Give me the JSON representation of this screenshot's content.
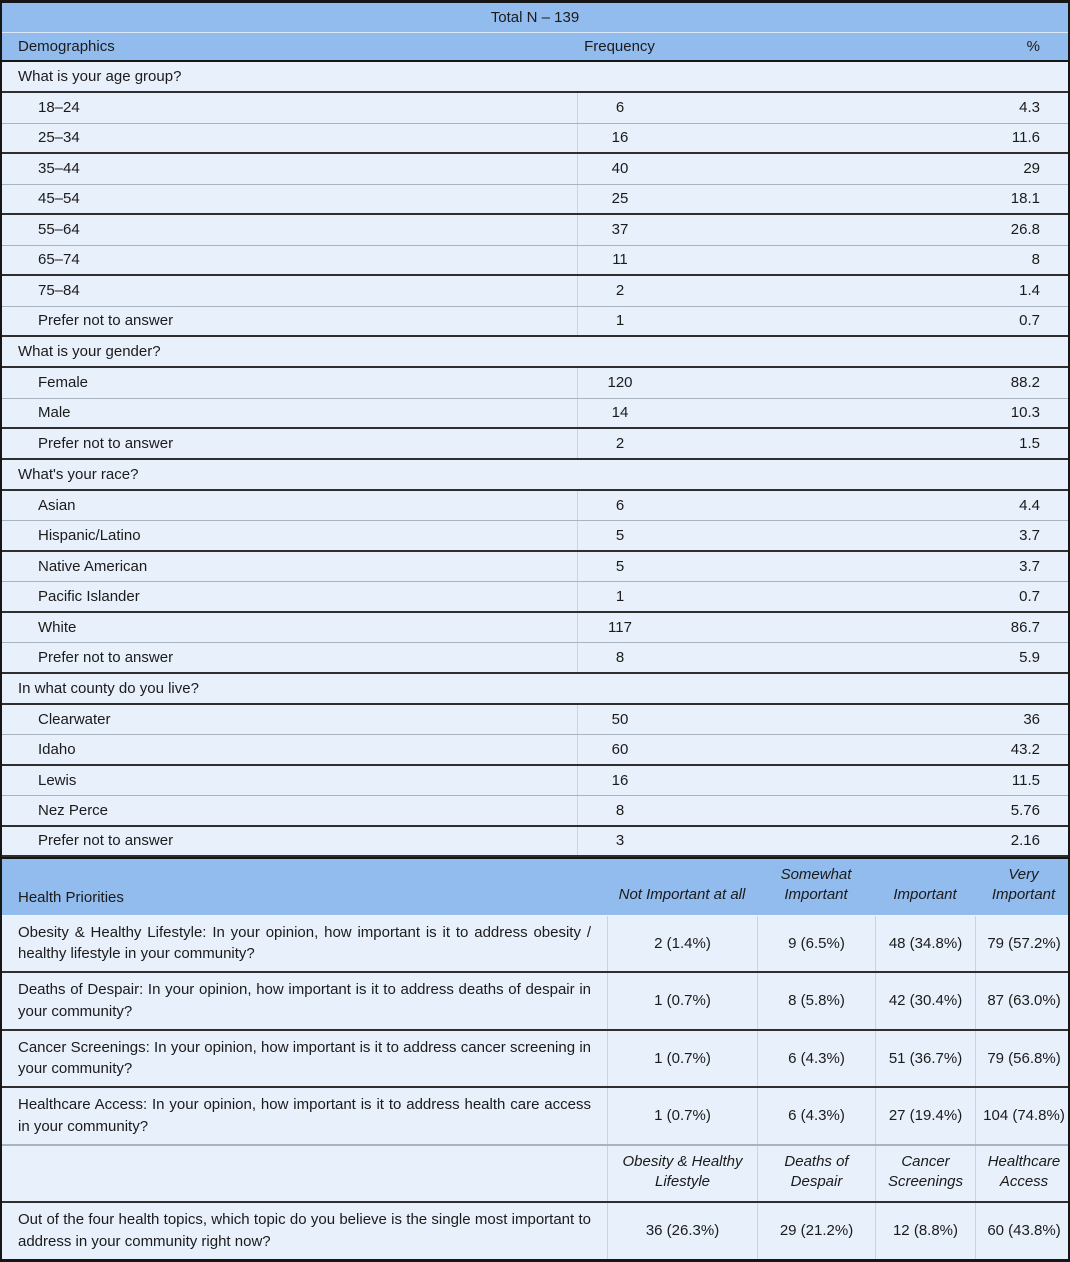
{
  "title": "Total N – 139",
  "colors": {
    "header_blue": "#92bbee",
    "row_blue": "#e8f0fb",
    "text": "#1b1b1b",
    "border_dark": "#161616",
    "border_medium": "#2e2e2e",
    "border_gray": "#a9b4c2",
    "column_line": "#c9d4e2"
  },
  "demographics": {
    "columns": [
      "Demographics",
      "Frequency",
      "%"
    ],
    "sections": [
      {
        "question": "What is your age group?",
        "rows": [
          [
            "18–24",
            "6",
            "4.3"
          ],
          [
            "25–34",
            "16",
            "11.6"
          ],
          [
            "35–44",
            "40",
            "29"
          ],
          [
            "45–54",
            "25",
            "18.1"
          ],
          [
            "55–64",
            "37",
            "26.8"
          ],
          [
            "65–74",
            "11",
            "8"
          ],
          [
            "75–84",
            "2",
            "1.4"
          ],
          [
            "Prefer not to answer",
            "1",
            "0.7"
          ]
        ]
      },
      {
        "question": "What is your gender?",
        "rows": [
          [
            "Female",
            "120",
            "88.2"
          ],
          [
            "Male",
            "14",
            "10.3"
          ],
          [
            "Prefer not to answer",
            "2",
            "1.5"
          ]
        ]
      },
      {
        "question": "What's your race?",
        "rows": [
          [
            "Asian",
            "6",
            "4.4"
          ],
          [
            "Hispanic/Latino",
            "5",
            "3.7"
          ],
          [
            "Native American",
            "5",
            "3.7"
          ],
          [
            "Pacific Islander",
            "1",
            "0.7"
          ],
          [
            "White",
            "117",
            "86.7"
          ],
          [
            "Prefer not to answer",
            "8",
            "5.9"
          ]
        ]
      },
      {
        "question": "In what county do you live?",
        "rows": [
          [
            "Clearwater",
            "50",
            "36"
          ],
          [
            "Idaho",
            "60",
            "43.2"
          ],
          [
            "Lewis",
            "16",
            "11.5"
          ],
          [
            "Nez Perce",
            "8",
            "5.76"
          ],
          [
            "Prefer not to answer",
            "3",
            "2.16"
          ]
        ]
      }
    ]
  },
  "priorities": {
    "header": [
      "Health Priorities",
      "Not Important at all",
      "Somewhat Important",
      "Important",
      "Very Important"
    ],
    "rows": [
      {
        "statement": "Obesity & Healthy Lifestyle: In your opinion, how important is it to address obesity / healthy lifestyle in your community?",
        "values": [
          "2 (1.4%)",
          "9 (6.5%)",
          "48 (34.8%)",
          "79 (57.2%)"
        ]
      },
      {
        "statement": "Deaths of Despair: In your opinion, how important is it to address deaths of despair in your community?",
        "values": [
          "1 (0.7%)",
          "8 (5.8%)",
          "42 (30.4%)",
          "87 (63.0%)"
        ]
      },
      {
        "statement": "Cancer Screenings: In your opinion, how important is it to address cancer screening in your community?",
        "values": [
          "1 (0.7%)",
          "6 (4.3%)",
          "51 (36.7%)",
          "79 (56.8%)"
        ]
      },
      {
        "statement": "Healthcare Access: In your opinion, how important is it to address health care access in your community?",
        "values": [
          "1 (0.7%)",
          "6 (4.3%)",
          "27 (19.4%)",
          "104 (74.8%)"
        ]
      }
    ]
  },
  "topics": {
    "header": [
      "",
      "Obesity & Healthy Lifestyle",
      "Deaths of Despair",
      "Cancer Screenings",
      "Healthcare Access"
    ],
    "rows": [
      {
        "statement": "Out of the four health topics, which topic do you believe is the single most important to address in your community right now?",
        "values": [
          "36 (26.3%)",
          "29 (21.2%)",
          "12 (8.8%)",
          "60 (43.8%)"
        ]
      }
    ]
  }
}
